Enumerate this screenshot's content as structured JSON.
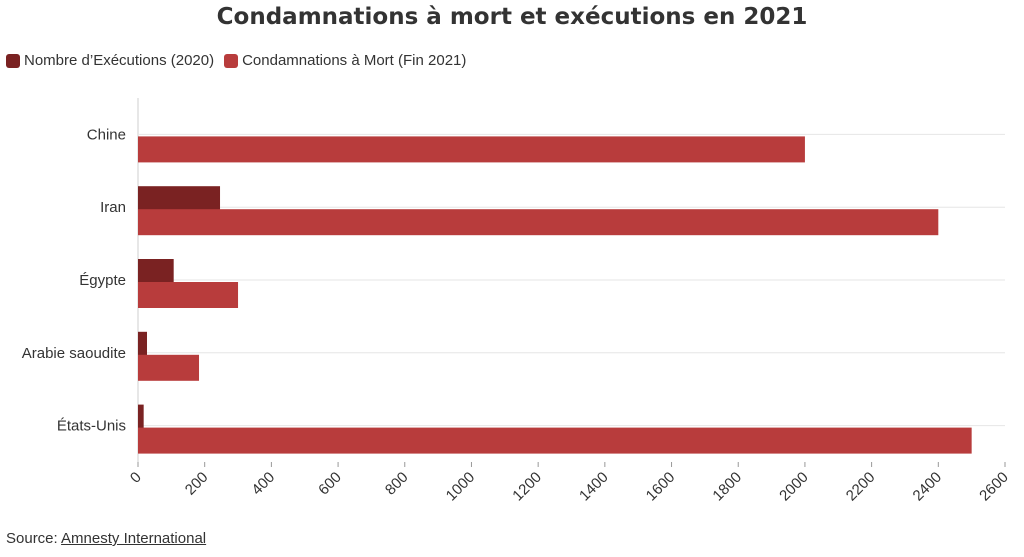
{
  "chart_data": {
    "type": "bar",
    "orientation": "horizontal",
    "title": "Condamnations à mort et exécutions en 2021",
    "categories": [
      "Chine",
      "Iran",
      "Égypte",
      "Arabie saoudite",
      "États-Unis"
    ],
    "series": [
      {
        "name": "Nombre d’Exécutions (2020)",
        "color": "#7a2222",
        "values": [
          null,
          246,
          107,
          27,
          17
        ]
      },
      {
        "name": "Condamnations à Mort (Fin 2021)",
        "color": "#b83c3c",
        "values": [
          2000,
          2400,
          300,
          183,
          2500
        ]
      }
    ],
    "xticks": [
      "0",
      "200",
      "400",
      "600",
      "800",
      "1000",
      "1200",
      "1400",
      "1600",
      "1800",
      "2000",
      "2200",
      "2400",
      "2600"
    ],
    "xlim": [
      0,
      2600
    ],
    "grid": true,
    "legend_position": "top-left"
  },
  "footer": {
    "source_label": "Source:",
    "source_link": "Amnesty International"
  }
}
